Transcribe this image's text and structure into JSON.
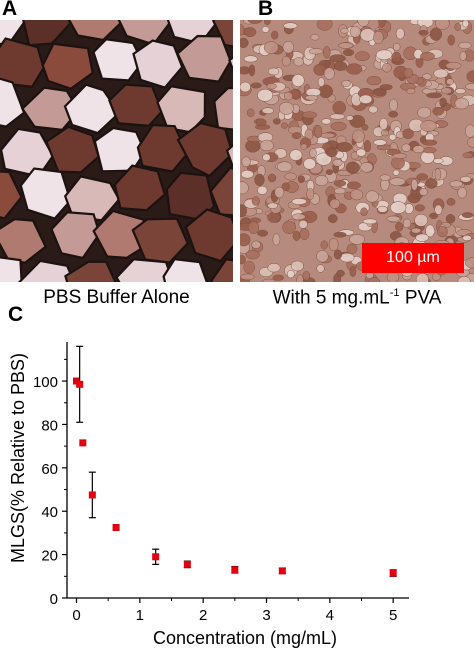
{
  "panels": {
    "a": {
      "letter": "A",
      "caption": "PBS Buffer Alone"
    },
    "b": {
      "letter": "B",
      "caption_main": "With 5 mg.mL",
      "caption_sup": "-1",
      "caption_tail": " PVA",
      "scale_bar": "100 µm"
    },
    "c": {
      "letter": "C"
    }
  },
  "colors": {
    "marker": "#e3000f",
    "scale_bar": "#ff0000",
    "ice_dark": "#5a2e26",
    "ice_light": "#f1e8ec"
  },
  "chart_data": {
    "type": "scatter",
    "title": "",
    "xlabel": "Concentration (mg/mL)",
    "ylabel": "MLGS(% Relative to PBS)",
    "xlim": [
      -0.15,
      5.25
    ],
    "ylim": [
      0,
      118
    ],
    "xticks": [
      0,
      1,
      2,
      3,
      4,
      5
    ],
    "yticks": [
      0,
      20,
      40,
      60,
      80,
      100
    ],
    "grid": false,
    "points": [
      {
        "x": 0,
        "y": 100,
        "err": 0
      },
      {
        "x": 0.05,
        "y": 98.5,
        "err": 17.5
      },
      {
        "x": 0.1,
        "y": 71.5,
        "err": 0
      },
      {
        "x": 0.25,
        "y": 47.5,
        "err": 10.5
      },
      {
        "x": 0.625,
        "y": 32.5,
        "err": 0
      },
      {
        "x": 1.25,
        "y": 19,
        "err": 3.5
      },
      {
        "x": 1.75,
        "y": 15.5,
        "err": 1.5
      },
      {
        "x": 2.5,
        "y": 13,
        "err": 1.5
      },
      {
        "x": 3.25,
        "y": 12.5,
        "err": 1.2
      },
      {
        "x": 5,
        "y": 11.5,
        "err": 1.5
      }
    ]
  }
}
